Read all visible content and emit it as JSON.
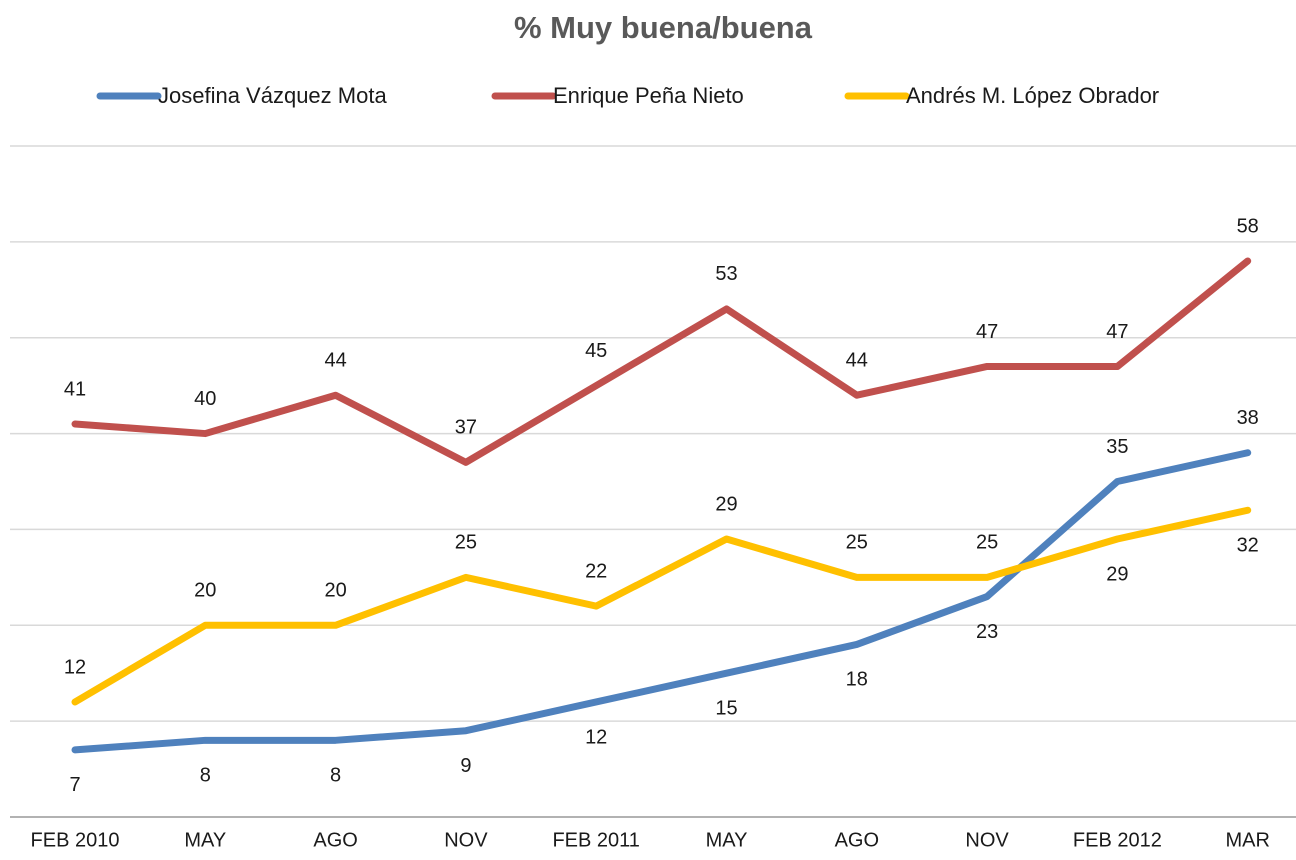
{
  "chart_data": {
    "type": "line",
    "title": "% Muy buena/buena",
    "categories": [
      "FEB 2010",
      "MAY",
      "AGO",
      "NOV",
      "FEB 2011",
      "MAY",
      "AGO",
      "NOV",
      "FEB 2012",
      "MAR"
    ],
    "series": [
      {
        "name": "Josefina Vázquez Mota",
        "color": "#4f81bd",
        "values": [
          7,
          8,
          8,
          9,
          12,
          15,
          18,
          23,
          35,
          38
        ]
      },
      {
        "name": "Enrique Peña Nieto",
        "color": "#c0504d",
        "values": [
          41,
          40,
          44,
          37,
          45,
          53,
          44,
          47,
          47,
          58
        ]
      },
      {
        "name": "Andrés M. López Obrador",
        "color": "#ffc000",
        "values": [
          12,
          20,
          20,
          25,
          22,
          29,
          25,
          25,
          29,
          32
        ]
      }
    ],
    "ylim": [
      0,
      70
    ],
    "yticks": [
      0,
      10,
      20,
      30,
      40,
      50,
      60,
      70
    ],
    "grid": true,
    "legend": "top"
  }
}
